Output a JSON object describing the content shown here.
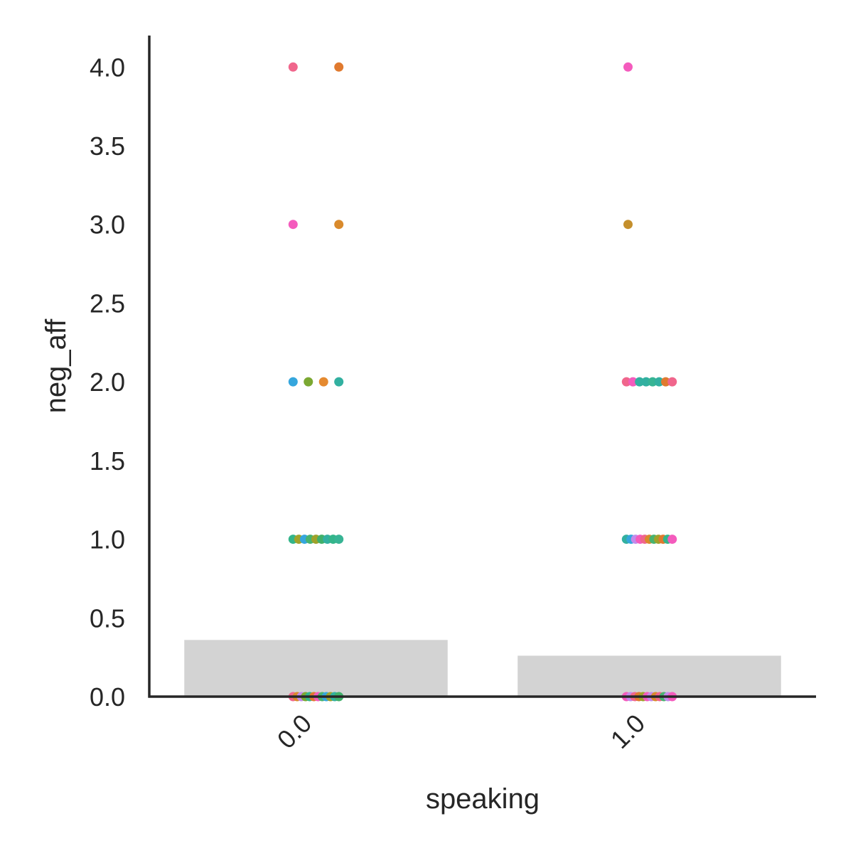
{
  "chart_data": {
    "type": "bar",
    "xlabel": "speaking",
    "ylabel": "neg_aff",
    "categories": [
      "0.0",
      "1.0"
    ],
    "values": [
      0.36,
      0.26
    ],
    "bar_color": "#d3d3d3",
    "ylim": [
      0,
      4.2
    ],
    "yticks": [
      "0.0",
      "0.5",
      "1.0",
      "1.5",
      "2.0",
      "2.5",
      "3.0",
      "3.5",
      "4.0"
    ],
    "grid": false,
    "legend": "none",
    "strip_points": [
      {
        "category": "0.0",
        "points": [
          {
            "y": 4,
            "color": "#f0668c"
          },
          {
            "y": 4,
            "color": "#e07a2f"
          },
          {
            "y": 3,
            "color": "#f45bbd"
          },
          {
            "y": 3,
            "color": "#d98a2c"
          },
          {
            "y": 2,
            "color": "#35a6dd"
          },
          {
            "y": 2,
            "color": "#7ba832"
          },
          {
            "y": 2,
            "color": "#e58a30"
          },
          {
            "y": 2,
            "color": "#32b0a0"
          },
          {
            "y": 1,
            "color": "#33b58a"
          },
          {
            "y": 1,
            "color": "#a1a32a"
          },
          {
            "y": 1,
            "color": "#35a6dd"
          },
          {
            "y": 1,
            "color": "#48b36f"
          },
          {
            "y": 1,
            "color": "#9ea22b"
          },
          {
            "y": 1,
            "color": "#40b06a"
          },
          {
            "y": 1,
            "color": "#32b0a0"
          },
          {
            "y": 1,
            "color": "#33b58a"
          },
          {
            "y": 1,
            "color": "#37b494"
          },
          {
            "y": 0,
            "color": "#f0668c"
          },
          {
            "y": 0,
            "color": "#d98a2c"
          },
          {
            "y": 0,
            "color": "#c38aeb"
          },
          {
            "y": 0,
            "color": "#7ba832"
          },
          {
            "y": 0,
            "color": "#33b58a"
          },
          {
            "y": 0,
            "color": "#e07a2f"
          },
          {
            "y": 0,
            "color": "#f45bbd"
          },
          {
            "y": 0,
            "color": "#48b36f"
          },
          {
            "y": 0,
            "color": "#35a6dd"
          },
          {
            "y": 0,
            "color": "#9ea22b"
          },
          {
            "y": 0,
            "color": "#32b0a0"
          },
          {
            "y": 0,
            "color": "#40b06a"
          }
        ]
      },
      {
        "category": "1.0",
        "points": [
          {
            "y": 4,
            "color": "#f45bbd"
          },
          {
            "y": 3,
            "color": "#c48f2c"
          },
          {
            "y": 2,
            "color": "#f0668c"
          },
          {
            "y": 2,
            "color": "#f45bbd"
          },
          {
            "y": 2,
            "color": "#32b0a0"
          },
          {
            "y": 2,
            "color": "#32b0a0"
          },
          {
            "y": 2,
            "color": "#37b494"
          },
          {
            "y": 2,
            "color": "#32b0a0"
          },
          {
            "y": 2,
            "color": "#e07a2f"
          },
          {
            "y": 2,
            "color": "#f0668c"
          },
          {
            "y": 1,
            "color": "#32b0a0"
          },
          {
            "y": 1,
            "color": "#35a6dd"
          },
          {
            "y": 1,
            "color": "#c38aeb"
          },
          {
            "y": 1,
            "color": "#f45bbd"
          },
          {
            "y": 1,
            "color": "#f0668c"
          },
          {
            "y": 1,
            "color": "#d98a2c"
          },
          {
            "y": 1,
            "color": "#48b36f"
          },
          {
            "y": 1,
            "color": "#9ea22b"
          },
          {
            "y": 1,
            "color": "#e07a2f"
          },
          {
            "y": 1,
            "color": "#33b58a"
          },
          {
            "y": 1,
            "color": "#f45bbd"
          },
          {
            "y": 0,
            "color": "#f45bbd"
          },
          {
            "y": 0,
            "color": "#c38aeb"
          },
          {
            "y": 0,
            "color": "#f0668c"
          },
          {
            "y": 0,
            "color": "#e07a2f"
          },
          {
            "y": 0,
            "color": "#9ea22b"
          },
          {
            "y": 0,
            "color": "#f45bbd"
          },
          {
            "y": 0,
            "color": "#c38aeb"
          },
          {
            "y": 0,
            "color": "#d98a2c"
          },
          {
            "y": 0,
            "color": "#f0668c"
          },
          {
            "y": 0,
            "color": "#48b36f"
          },
          {
            "y": 0,
            "color": "#c38aeb"
          },
          {
            "y": 0,
            "color": "#f45bbd"
          }
        ]
      }
    ]
  }
}
